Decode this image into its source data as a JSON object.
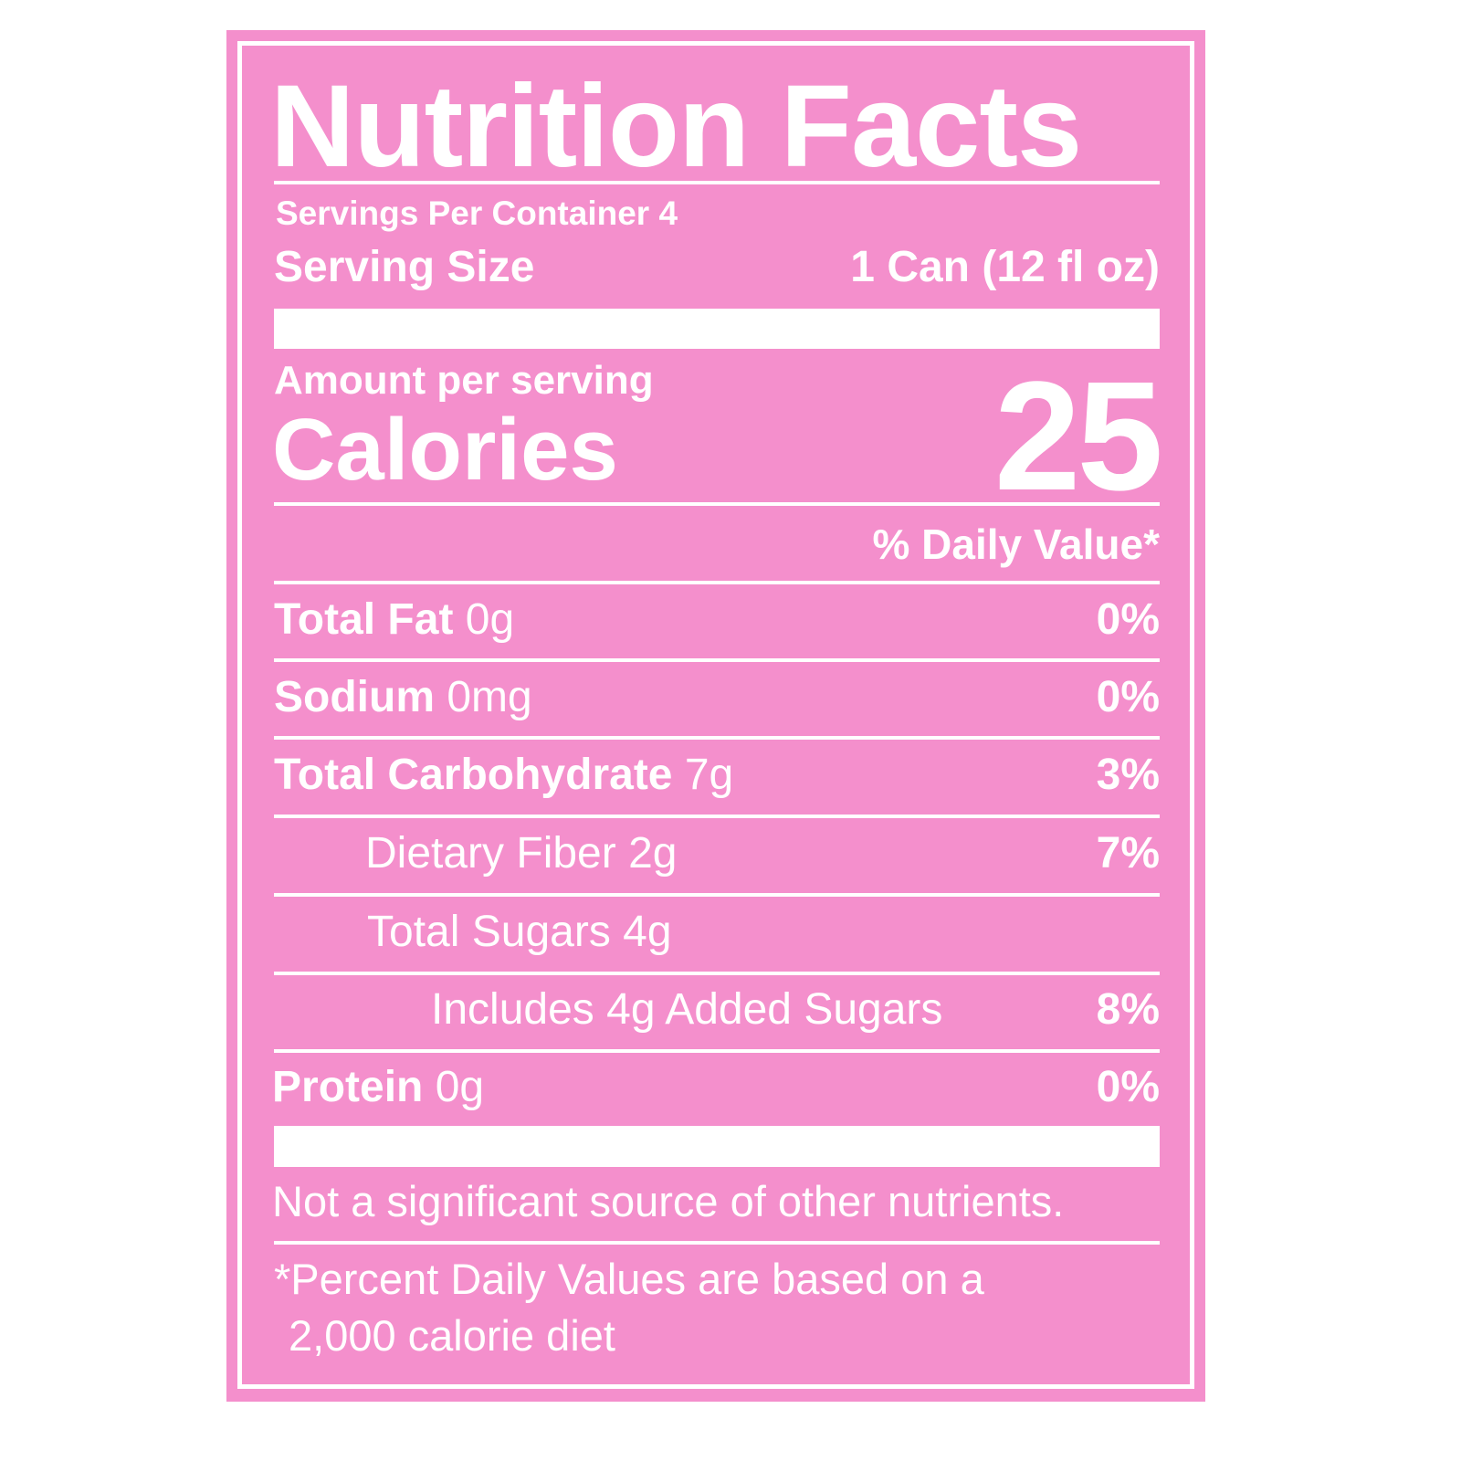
{
  "title": "Nutrition Facts",
  "servings_per_container": "Servings Per Container 4",
  "serving_size": {
    "label": "Serving Size",
    "value": "1 Can (12 fl oz)"
  },
  "amount_per_serving": "Amount per serving",
  "calories": {
    "label": "Calories",
    "value": "25"
  },
  "daily_value_header": "% Daily Value*",
  "nutrients": [
    {
      "name": "Total Fat",
      "amount": "0g",
      "dv": "0%"
    },
    {
      "name": "Sodium",
      "amount": "0mg",
      "dv": "0%"
    },
    {
      "name": "Total Carbohydrate",
      "amount": "7g",
      "dv": "3%"
    },
    {
      "name": "Dietary Fiber",
      "amount": "2g",
      "dv": "7%"
    },
    {
      "name": "Total Sugars",
      "amount": "4g",
      "dv": ""
    },
    {
      "name": "Includes 4g Added Sugars",
      "amount": "",
      "dv": "8%"
    },
    {
      "name": "Protein",
      "amount": "0g",
      "dv": "0%"
    }
  ],
  "not_significant": "Not a significant source of other nutrients.",
  "footnote": [
    "*Percent Daily Values are based on a",
    "2,000 calorie diet"
  ],
  "colors": {
    "background": "#f48fcc",
    "text": "#ffffff"
  }
}
